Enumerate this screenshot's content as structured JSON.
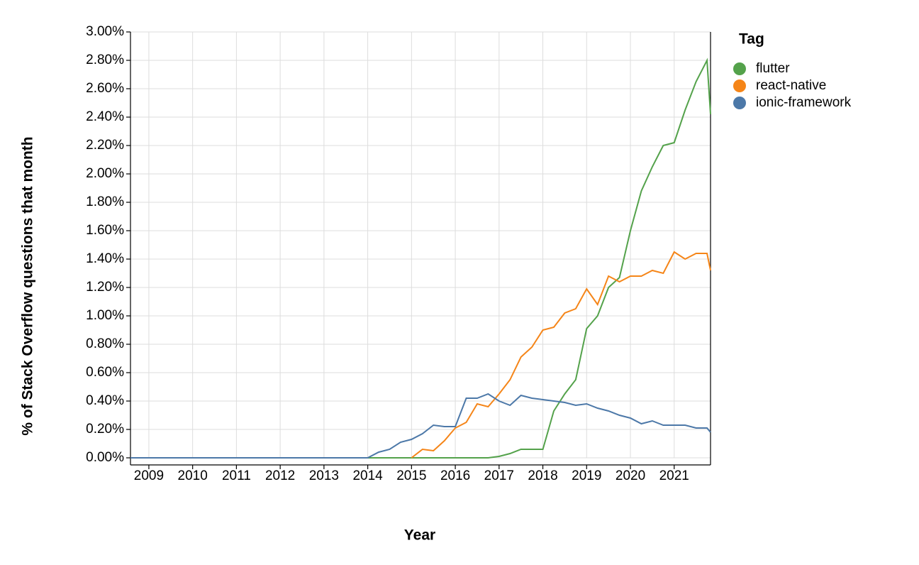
{
  "chart_data": {
    "type": "line",
    "x_label": "Year",
    "y_label": "% of Stack Overflow questions that month",
    "legend_title": "Tag",
    "legend": "top-right",
    "grid": true,
    "x": [
      2008.58,
      2013.75,
      2014,
      2014.25,
      2014.5,
      2014.75,
      2015,
      2015.25,
      2015.5,
      2015.75,
      2016,
      2016.25,
      2016.5,
      2016.75,
      2017,
      2017.25,
      2017.5,
      2017.75,
      2018,
      2018.25,
      2018.5,
      2018.75,
      2019,
      2019.25,
      2019.5,
      2019.75,
      2020,
      2020.25,
      2020.5,
      2020.75,
      2021,
      2021.25,
      2021.5,
      2021.75,
      2021.83
    ],
    "xlim": [
      2008.58,
      2021.83
    ],
    "xticks": [
      2009,
      2010,
      2011,
      2012,
      2013,
      2014,
      2015,
      2016,
      2017,
      2018,
      2019,
      2020,
      2021
    ],
    "ylim": [
      0,
      3
    ],
    "yticks": [
      {
        "value": 0,
        "label": "0.00%"
      },
      {
        "value": 0.2,
        "label": "0.20%"
      },
      {
        "value": 0.4,
        "label": "0.40%"
      },
      {
        "value": 0.6,
        "label": "0.60%"
      },
      {
        "value": 0.8,
        "label": "0.80%"
      },
      {
        "value": 1,
        "label": "1.00%"
      },
      {
        "value": 1.2,
        "label": "1.20%"
      },
      {
        "value": 1.4,
        "label": "1.40%"
      },
      {
        "value": 1.6,
        "label": "1.60%"
      },
      {
        "value": 1.8,
        "label": "1.80%"
      },
      {
        "value": 2,
        "label": "2.00%"
      },
      {
        "value": 2.2,
        "label": "2.20%"
      },
      {
        "value": 2.4,
        "label": "2.40%"
      },
      {
        "value": 2.6,
        "label": "2.60%"
      },
      {
        "value": 2.8,
        "label": "2.80%"
      },
      {
        "value": 3,
        "label": "3.00%"
      }
    ],
    "series": [
      {
        "name": "flutter",
        "color": "#54a24b",
        "values": [
          0,
          0,
          0,
          0,
          0,
          0,
          0,
          0,
          0,
          0,
          0,
          0,
          0,
          0,
          0.01,
          0.03,
          0.06,
          0.06,
          0.06,
          0.33,
          0.45,
          0.55,
          0.91,
          1.0,
          1.2,
          1.27,
          1.6,
          1.88,
          2.05,
          2.2,
          2.22,
          2.45,
          2.65,
          2.8,
          2.42
        ]
      },
      {
        "name": "react-native",
        "color": "#f58518",
        "values": [
          null,
          null,
          null,
          null,
          null,
          null,
          0,
          0.06,
          0.05,
          0.12,
          0.21,
          0.25,
          0.38,
          0.36,
          0.45,
          0.55,
          0.71,
          0.78,
          0.9,
          0.92,
          1.02,
          1.05,
          1.19,
          1.08,
          1.28,
          1.24,
          1.28,
          1.28,
          1.32,
          1.3,
          1.45,
          1.4,
          1.44,
          1.44,
          1.32
        ]
      },
      {
        "name": "ionic-framework",
        "color": "#4c78a8",
        "values": [
          0,
          0,
          0,
          0.04,
          0.06,
          0.11,
          0.13,
          0.17,
          0.23,
          0.22,
          0.22,
          0.42,
          0.42,
          0.45,
          0.4,
          0.37,
          0.44,
          0.42,
          0.41,
          0.4,
          0.39,
          0.37,
          0.38,
          0.35,
          0.33,
          0.3,
          0.28,
          0.24,
          0.26,
          0.23,
          0.23,
          0.23,
          0.21,
          0.21,
          0.18
        ]
      }
    ]
  }
}
